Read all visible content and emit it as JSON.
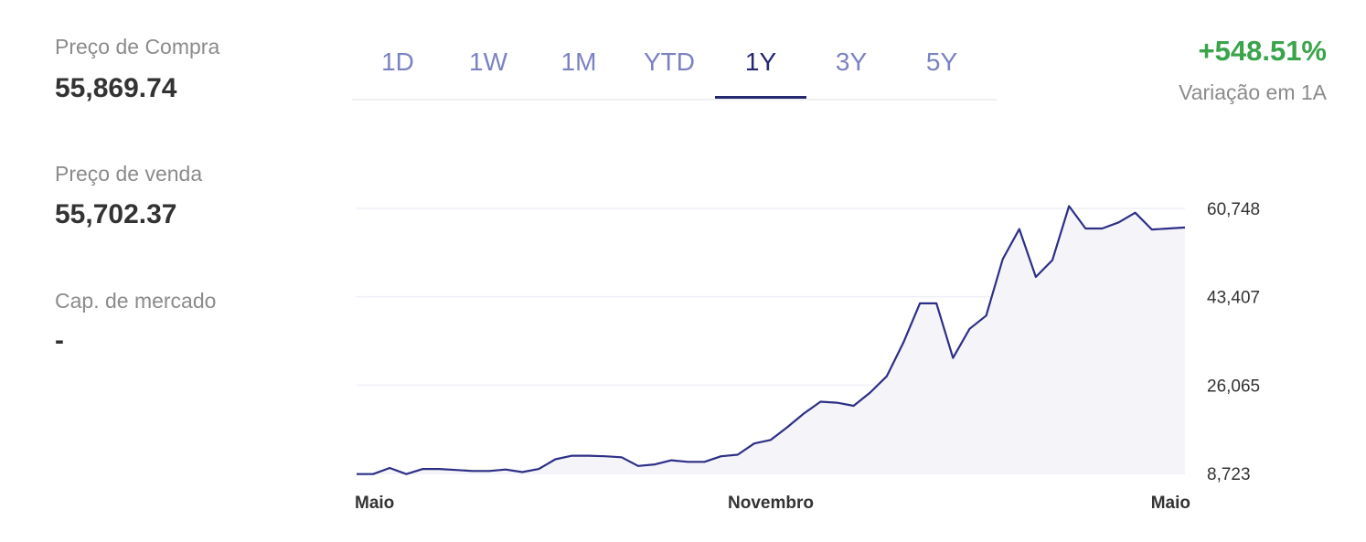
{
  "stats": {
    "buy_label": "Preço de Compra",
    "buy_value": "55,869.74",
    "sell_label": "Preço de venda",
    "sell_value": "55,702.37",
    "cap_label": "Cap. de mercado",
    "cap_value": "-"
  },
  "tabs": [
    {
      "label": "1D",
      "active": false
    },
    {
      "label": "1W",
      "active": false
    },
    {
      "label": "1M",
      "active": false
    },
    {
      "label": "YTD",
      "active": false
    },
    {
      "label": "1Y",
      "active": true
    },
    {
      "label": "3Y",
      "active": false
    },
    {
      "label": "5Y",
      "active": false
    }
  ],
  "change": {
    "value": "+548.51%",
    "label": "Variação em 1A",
    "color": "#3aa44b"
  },
  "colors": {
    "line": "#2d2f86",
    "area": "#f4f4f9",
    "grid": "#eef0f7",
    "active_tab": "#24286f",
    "tab": "#7b82c1"
  },
  "chart_data": {
    "type": "area",
    "y_ticks": [
      "60,748",
      "43,407",
      "26,065",
      "8,723"
    ],
    "ylim": [
      8723,
      60748
    ],
    "x_labels": [
      "Maio",
      "Novembro",
      "Maio"
    ],
    "series": [
      {
        "values": [
          8600,
          8600,
          9800,
          8600,
          9600,
          9600,
          9400,
          9200,
          9200,
          9500,
          9000,
          9600,
          11500,
          12200,
          12200,
          12100,
          11900,
          10200,
          10500,
          11300,
          11000,
          11000,
          12100,
          12400,
          14600,
          15300,
          17800,
          20500,
          22800,
          22600,
          22000,
          24600,
          27800,
          34400,
          42100,
          42100,
          31400,
          37100,
          39700,
          50800,
          56700,
          47300,
          50600,
          61200,
          56800,
          56800,
          58000,
          59900,
          56600,
          56800,
          57000
        ]
      }
    ]
  }
}
